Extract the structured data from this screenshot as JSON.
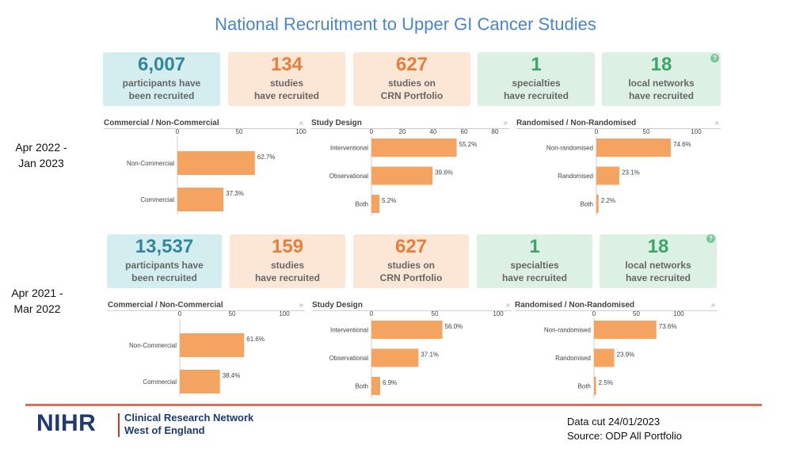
{
  "title": "National Recruitment to Upper GI Cancer Studies",
  "help_glyph": "?",
  "chevron_glyph": "»",
  "colors": {
    "bar": "#f4a460",
    "title": "#4a86c5",
    "accent_line": "#d9705a"
  },
  "periods": [
    {
      "label_line1": "Apr 2022 -",
      "label_line2": "Jan 2023",
      "cards": [
        {
          "value": "6,007",
          "line1": "participants have",
          "line2": "been recruited",
          "bg": "#d4eef0",
          "fg": "#34879a"
        },
        {
          "value": "134",
          "line1": "studies",
          "line2": "have recruited",
          "bg": "#fce6d6",
          "fg": "#e57f3a"
        },
        {
          "value": "627",
          "line1": "studies on",
          "line2": "CRN Portfolio",
          "bg": "#fce6d6",
          "fg": "#e57f3a"
        },
        {
          "value": "1",
          "line1": "specialties",
          "line2": "have recruited",
          "bg": "#dcf1e3",
          "fg": "#3ba56a"
        },
        {
          "value": "18",
          "line1": "local networks",
          "line2": "have recruited",
          "bg": "#dcf1e3",
          "fg": "#3ba56a"
        }
      ],
      "charts": [
        {
          "title": "Commercial / Non-Commercial",
          "type": "bar",
          "ticks": [
            "0",
            "50",
            "100"
          ],
          "max": 100,
          "categories": [
            "Non-Commercial",
            "Commercial"
          ],
          "values": [
            62.7,
            37.3
          ],
          "labels": [
            "62.7%",
            "37.3%"
          ]
        },
        {
          "title": "Study Design",
          "type": "bar",
          "ticks": [
            "0",
            "20",
            "40",
            "60",
            "80"
          ],
          "max": 80,
          "categories": [
            "Interventional",
            "Observational",
            "Both"
          ],
          "values": [
            55.2,
            39.6,
            5.2
          ],
          "labels": [
            "55.2%",
            "39.6%",
            "5.2%"
          ]
        },
        {
          "title": "Randomised / Non-Randomised",
          "type": "bar",
          "ticks": [
            "0",
            "50",
            "100"
          ],
          "max": 100,
          "categories": [
            "Non-randomised",
            "Randomised",
            "Both"
          ],
          "values": [
            74.6,
            23.1,
            2.2
          ],
          "labels": [
            "74.6%",
            "23.1%",
            "2.2%"
          ]
        }
      ]
    },
    {
      "label_line1": "Apr 2021 -",
      "label_line2": "Mar 2022",
      "cards": [
        {
          "value": "13,537",
          "line1": "participants have",
          "line2": "been recruited",
          "bg": "#d4eef0",
          "fg": "#34879a"
        },
        {
          "value": "159",
          "line1": "studies",
          "line2": "have recruited",
          "bg": "#fce6d6",
          "fg": "#e57f3a"
        },
        {
          "value": "627",
          "line1": "studies on",
          "line2": "CRN Portfolio",
          "bg": "#fce6d6",
          "fg": "#e57f3a"
        },
        {
          "value": "1",
          "line1": "specialties",
          "line2": "have recruited",
          "bg": "#dcf1e3",
          "fg": "#3ba56a"
        },
        {
          "value": "18",
          "line1": "local networks",
          "line2": "have recruited",
          "bg": "#dcf1e3",
          "fg": "#3ba56a"
        }
      ],
      "charts": [
        {
          "title": "Commercial / Non-Commercial",
          "type": "bar",
          "ticks": [
            "0",
            "50",
            "100"
          ],
          "max": 100,
          "categories": [
            "Non-Commercial",
            "Commercial"
          ],
          "values": [
            61.6,
            38.4
          ],
          "labels": [
            "61.6%",
            "38.4%"
          ]
        },
        {
          "title": "Study Design",
          "type": "bar",
          "ticks": [
            "0",
            "50",
            "100"
          ],
          "max": 100,
          "categories": [
            "Interventional",
            "Observational",
            "Both"
          ],
          "values": [
            56.0,
            37.1,
            6.9
          ],
          "labels": [
            "56.0%",
            "37.1%",
            "6.9%"
          ]
        },
        {
          "title": "Randomised / Non-Randomised",
          "type": "bar",
          "ticks": [
            "0",
            "50",
            "100"
          ],
          "max": 100,
          "categories": [
            "Non-randomised",
            "Randomised",
            "Both"
          ],
          "values": [
            73.6,
            23.9,
            2.5
          ],
          "labels": [
            "73.6%",
            "23.9%",
            "2.5%"
          ]
        }
      ]
    }
  ],
  "chart_data": [
    {
      "type": "bar",
      "title": "Commercial / Non-Commercial (Apr 2022 - Jan 2023)",
      "categories": [
        "Non-Commercial",
        "Commercial"
      ],
      "values": [
        62.7,
        37.3
      ],
      "xlim": [
        0,
        100
      ],
      "xlabel": "",
      "ylabel": ""
    },
    {
      "type": "bar",
      "title": "Study Design (Apr 2022 - Jan 2023)",
      "categories": [
        "Interventional",
        "Observational",
        "Both"
      ],
      "values": [
        55.2,
        39.6,
        5.2
      ],
      "xlim": [
        0,
        80
      ],
      "xlabel": "",
      "ylabel": ""
    },
    {
      "type": "bar",
      "title": "Randomised / Non-Randomised (Apr 2022 - Jan 2023)",
      "categories": [
        "Non-randomised",
        "Randomised",
        "Both"
      ],
      "values": [
        74.6,
        23.1,
        2.2
      ],
      "xlim": [
        0,
        100
      ],
      "xlabel": "",
      "ylabel": ""
    },
    {
      "type": "bar",
      "title": "Commercial / Non-Commercial (Apr 2021 - Mar 2022)",
      "categories": [
        "Non-Commercial",
        "Commercial"
      ],
      "values": [
        61.6,
        38.4
      ],
      "xlim": [
        0,
        100
      ],
      "xlabel": "",
      "ylabel": ""
    },
    {
      "type": "bar",
      "title": "Study Design (Apr 2021 - Mar 2022)",
      "categories": [
        "Interventional",
        "Observational",
        "Both"
      ],
      "values": [
        56.0,
        37.1,
        6.9
      ],
      "xlim": [
        0,
        100
      ],
      "xlabel": "",
      "ylabel": ""
    },
    {
      "type": "bar",
      "title": "Randomised / Non-Randomised (Apr 2021 - Mar 2022)",
      "categories": [
        "Non-randomised",
        "Randomised",
        "Both"
      ],
      "values": [
        73.6,
        23.9,
        2.5
      ],
      "xlim": [
        0,
        100
      ],
      "xlabel": "",
      "ylabel": ""
    }
  ],
  "footer": {
    "logo_text": "NIHR",
    "network_line1": "Clinical Research Network",
    "network_line2": "West of England",
    "datacut": "Data cut 24/01/2023",
    "source": "Source: ODP All Portfolio"
  }
}
